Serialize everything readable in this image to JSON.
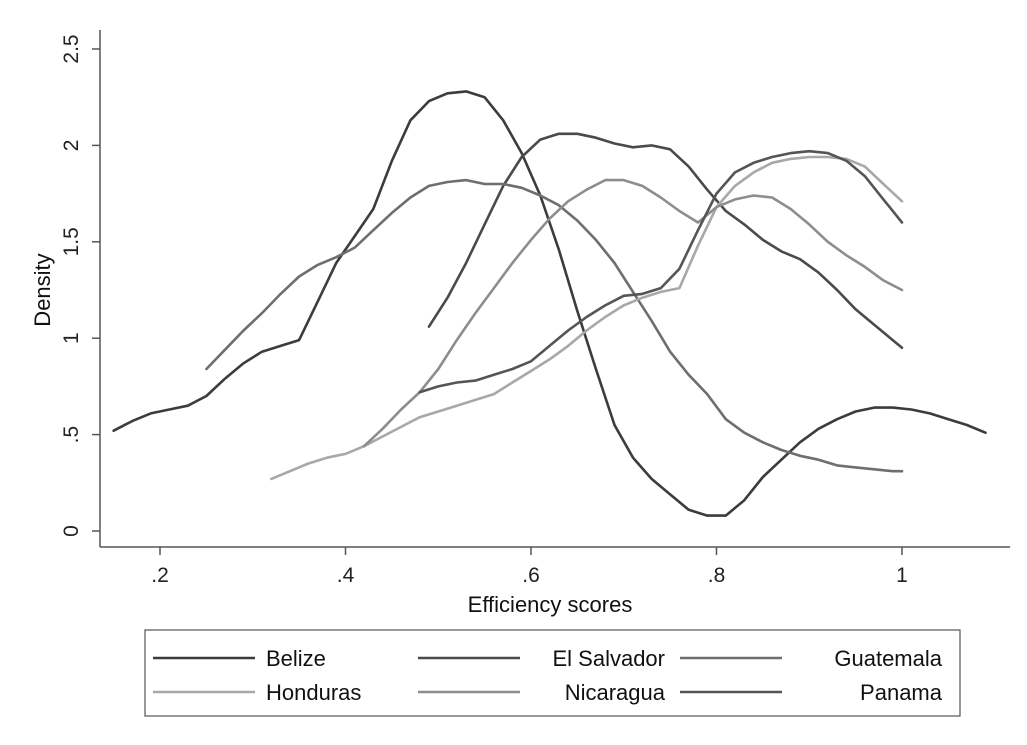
{
  "chart_data": {
    "type": "line",
    "title": "",
    "xlabel": "Efficiency scores",
    "ylabel": "Density",
    "xlim": [
      0.15,
      1.1
    ],
    "ylim": [
      0,
      2.5
    ],
    "x_ticks": [
      0.2,
      0.4,
      0.6,
      0.8,
      1.0
    ],
    "x_tick_labels": [
      ".2",
      ".4",
      ".6",
      ".8",
      "1"
    ],
    "y_ticks": [
      0,
      0.5,
      1,
      1.5,
      2,
      2.5
    ],
    "y_tick_labels": [
      "0",
      ".5",
      "1",
      "1.5",
      "2",
      "2.5"
    ],
    "grid": false,
    "legend_position": "bottom",
    "series": [
      {
        "name": "Belize",
        "color": "#3c3c3c",
        "points": [
          [
            0.15,
            0.52
          ],
          [
            0.17,
            0.57
          ],
          [
            0.19,
            0.61
          ],
          [
            0.21,
            0.63
          ],
          [
            0.23,
            0.65
          ],
          [
            0.25,
            0.7
          ],
          [
            0.27,
            0.79
          ],
          [
            0.29,
            0.87
          ],
          [
            0.31,
            0.93
          ],
          [
            0.33,
            0.96
          ],
          [
            0.35,
            0.99
          ],
          [
            0.37,
            1.19
          ],
          [
            0.39,
            1.39
          ],
          [
            0.41,
            1.53
          ],
          [
            0.43,
            1.67
          ],
          [
            0.45,
            1.92
          ],
          [
            0.47,
            2.13
          ],
          [
            0.49,
            2.23
          ],
          [
            0.51,
            2.27
          ],
          [
            0.53,
            2.28
          ],
          [
            0.55,
            2.25
          ],
          [
            0.57,
            2.13
          ],
          [
            0.59,
            1.96
          ],
          [
            0.61,
            1.74
          ],
          [
            0.63,
            1.46
          ],
          [
            0.65,
            1.14
          ],
          [
            0.67,
            0.84
          ],
          [
            0.69,
            0.55
          ],
          [
            0.71,
            0.38
          ],
          [
            0.73,
            0.27
          ],
          [
            0.75,
            0.19
          ],
          [
            0.77,
            0.11
          ],
          [
            0.79,
            0.08
          ],
          [
            0.81,
            0.08
          ],
          [
            0.83,
            0.16
          ],
          [
            0.85,
            0.28
          ],
          [
            0.87,
            0.37
          ],
          [
            0.89,
            0.46
          ],
          [
            0.91,
            0.53
          ],
          [
            0.93,
            0.58
          ],
          [
            0.95,
            0.62
          ],
          [
            0.97,
            0.64
          ],
          [
            0.99,
            0.64
          ],
          [
            1.01,
            0.63
          ],
          [
            1.03,
            0.61
          ],
          [
            1.05,
            0.58
          ],
          [
            1.07,
            0.55
          ],
          [
            1.09,
            0.51
          ]
        ]
      },
      {
        "name": "El Salvador",
        "color": "#4a4a4a",
        "points": [
          [
            0.49,
            1.06
          ],
          [
            0.51,
            1.21
          ],
          [
            0.53,
            1.39
          ],
          [
            0.55,
            1.59
          ],
          [
            0.57,
            1.79
          ],
          [
            0.59,
            1.94
          ],
          [
            0.61,
            2.03
          ],
          [
            0.63,
            2.06
          ],
          [
            0.65,
            2.06
          ],
          [
            0.67,
            2.04
          ],
          [
            0.69,
            2.01
          ],
          [
            0.71,
            1.99
          ],
          [
            0.73,
            2.0
          ],
          [
            0.75,
            1.98
          ],
          [
            0.77,
            1.89
          ],
          [
            0.79,
            1.77
          ],
          [
            0.81,
            1.66
          ],
          [
            0.83,
            1.59
          ],
          [
            0.85,
            1.51
          ],
          [
            0.87,
            1.45
          ],
          [
            0.89,
            1.41
          ],
          [
            0.91,
            1.34
          ],
          [
            0.93,
            1.25
          ],
          [
            0.95,
            1.15
          ],
          [
            0.97,
            1.07
          ],
          [
            0.99,
            0.99
          ],
          [
            1.0,
            0.95
          ]
        ]
      },
      {
        "name": "Guatemala",
        "color": "#6e6e6e",
        "points": [
          [
            0.25,
            0.84
          ],
          [
            0.27,
            0.94
          ],
          [
            0.29,
            1.04
          ],
          [
            0.31,
            1.13
          ],
          [
            0.33,
            1.23
          ],
          [
            0.35,
            1.32
          ],
          [
            0.37,
            1.38
          ],
          [
            0.39,
            1.42
          ],
          [
            0.41,
            1.47
          ],
          [
            0.43,
            1.56
          ],
          [
            0.45,
            1.65
          ],
          [
            0.47,
            1.73
          ],
          [
            0.49,
            1.79
          ],
          [
            0.51,
            1.81
          ],
          [
            0.53,
            1.82
          ],
          [
            0.55,
            1.8
          ],
          [
            0.57,
            1.8
          ],
          [
            0.59,
            1.78
          ],
          [
            0.61,
            1.74
          ],
          [
            0.63,
            1.69
          ],
          [
            0.65,
            1.61
          ],
          [
            0.67,
            1.51
          ],
          [
            0.69,
            1.39
          ],
          [
            0.71,
            1.24
          ],
          [
            0.73,
            1.09
          ],
          [
            0.75,
            0.93
          ],
          [
            0.77,
            0.81
          ],
          [
            0.79,
            0.71
          ],
          [
            0.81,
            0.58
          ],
          [
            0.83,
            0.51
          ],
          [
            0.85,
            0.46
          ],
          [
            0.87,
            0.42
          ],
          [
            0.89,
            0.39
          ],
          [
            0.91,
            0.37
          ],
          [
            0.93,
            0.34
          ],
          [
            0.95,
            0.33
          ],
          [
            0.97,
            0.32
          ],
          [
            0.99,
            0.31
          ],
          [
            1.0,
            0.31
          ]
        ]
      },
      {
        "name": "Honduras",
        "color": "#a8a8a8",
        "points": [
          [
            0.32,
            0.27
          ],
          [
            0.34,
            0.31
          ],
          [
            0.36,
            0.35
          ],
          [
            0.38,
            0.38
          ],
          [
            0.4,
            0.4
          ],
          [
            0.42,
            0.44
          ],
          [
            0.44,
            0.49
          ],
          [
            0.46,
            0.54
          ],
          [
            0.48,
            0.59
          ],
          [
            0.5,
            0.62
          ],
          [
            0.52,
            0.65
          ],
          [
            0.54,
            0.68
          ],
          [
            0.56,
            0.71
          ],
          [
            0.58,
            0.77
          ],
          [
            0.6,
            0.83
          ],
          [
            0.62,
            0.89
          ],
          [
            0.64,
            0.96
          ],
          [
            0.66,
            1.04
          ],
          [
            0.68,
            1.11
          ],
          [
            0.7,
            1.17
          ],
          [
            0.72,
            1.21
          ],
          [
            0.74,
            1.24
          ],
          [
            0.76,
            1.26
          ],
          [
            0.78,
            1.48
          ],
          [
            0.8,
            1.68
          ],
          [
            0.82,
            1.79
          ],
          [
            0.84,
            1.86
          ],
          [
            0.86,
            1.91
          ],
          [
            0.88,
            1.93
          ],
          [
            0.9,
            1.94
          ],
          [
            0.92,
            1.94
          ],
          [
            0.94,
            1.93
          ],
          [
            0.96,
            1.89
          ],
          [
            0.98,
            1.8
          ],
          [
            1.0,
            1.71
          ]
        ]
      },
      {
        "name": "Nicaragua",
        "color": "#8d8d8d",
        "points": [
          [
            0.42,
            0.44
          ],
          [
            0.44,
            0.53
          ],
          [
            0.46,
            0.63
          ],
          [
            0.48,
            0.72
          ],
          [
            0.5,
            0.84
          ],
          [
            0.52,
            0.99
          ],
          [
            0.54,
            1.13
          ],
          [
            0.56,
            1.26
          ],
          [
            0.58,
            1.39
          ],
          [
            0.6,
            1.51
          ],
          [
            0.62,
            1.62
          ],
          [
            0.64,
            1.71
          ],
          [
            0.66,
            1.77
          ],
          [
            0.68,
            1.82
          ],
          [
            0.7,
            1.82
          ],
          [
            0.72,
            1.79
          ],
          [
            0.74,
            1.73
          ],
          [
            0.76,
            1.66
          ],
          [
            0.78,
            1.6
          ],
          [
            0.8,
            1.68
          ],
          [
            0.82,
            1.72
          ],
          [
            0.84,
            1.74
          ],
          [
            0.86,
            1.73
          ],
          [
            0.88,
            1.67
          ],
          [
            0.9,
            1.59
          ],
          [
            0.92,
            1.5
          ],
          [
            0.94,
            1.43
          ],
          [
            0.96,
            1.37
          ],
          [
            0.98,
            1.3
          ],
          [
            1.0,
            1.25
          ]
        ]
      },
      {
        "name": "Panama",
        "color": "#555555",
        "points": [
          [
            0.48,
            0.72
          ],
          [
            0.5,
            0.75
          ],
          [
            0.52,
            0.77
          ],
          [
            0.54,
            0.78
          ],
          [
            0.56,
            0.81
          ],
          [
            0.58,
            0.84
          ],
          [
            0.6,
            0.88
          ],
          [
            0.62,
            0.96
          ],
          [
            0.64,
            1.04
          ],
          [
            0.66,
            1.11
          ],
          [
            0.68,
            1.17
          ],
          [
            0.7,
            1.22
          ],
          [
            0.72,
            1.23
          ],
          [
            0.74,
            1.26
          ],
          [
            0.76,
            1.36
          ],
          [
            0.78,
            1.56
          ],
          [
            0.8,
            1.75
          ],
          [
            0.82,
            1.86
          ],
          [
            0.84,
            1.91
          ],
          [
            0.86,
            1.94
          ],
          [
            0.88,
            1.96
          ],
          [
            0.9,
            1.97
          ],
          [
            0.92,
            1.96
          ],
          [
            0.94,
            1.92
          ],
          [
            0.96,
            1.84
          ],
          [
            0.98,
            1.72
          ],
          [
            1.0,
            1.6
          ]
        ]
      }
    ]
  }
}
